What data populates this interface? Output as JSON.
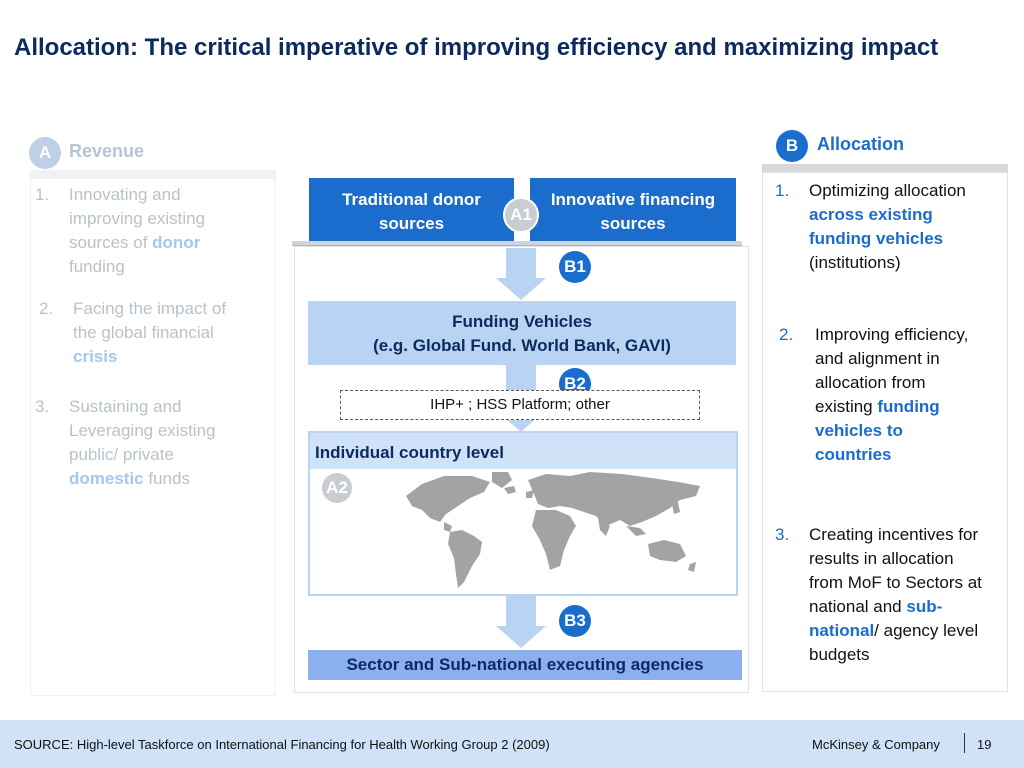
{
  "title": "Allocation: The critical imperative of improving efficiency and maximizing impact",
  "revenue": {
    "badge": "A",
    "label": "Revenue",
    "items": [
      {
        "num": "1.",
        "pre": "Innovating and improving existing sources of ",
        "hl": "donor",
        "post": " funding"
      },
      {
        "num": "2.",
        "pre": "Facing the impact of the global financial ",
        "hl": "crisis",
        "post": ""
      },
      {
        "num": "3.",
        "pre": "Sustaining and Leveraging existing public/ private ",
        "hl": "domestic",
        "post": " funds"
      }
    ]
  },
  "allocation": {
    "badge": "B",
    "label": "Allocation",
    "items": [
      {
        "num": "1.",
        "pre": "Optimizing allocation ",
        "hl": "across existing funding vehicles",
        "post": " (institutions)"
      },
      {
        "num": "2.",
        "pre": "Improving efficiency, and alignment in allocation from existing ",
        "hl": "funding vehicles to countries",
        "post": ""
      },
      {
        "num": "3.",
        "pre": "Creating incentives for results in allocation from MoF to Sectors at national and ",
        "hl": "sub-national",
        "post": "/ agency level budgets"
      }
    ]
  },
  "diagram": {
    "traditional": "Traditional donor sources",
    "innovative": "Innovative financing sources",
    "a1": "A1",
    "b1": "B1",
    "funding_line1": "Funding Vehicles",
    "funding_line2": "(e.g. Global Fund. World Bank, GAVI)",
    "b2": "B2",
    "ihp": "IHP+ ; HSS Platform; other",
    "country": "Individual country level",
    "a2": "A2",
    "b3": "B3",
    "sector": "Sector and Sub-national executing agencies"
  },
  "footer": {
    "source": "SOURCE: High-level Taskforce on International Financing for Health Working Group 2 (2009)",
    "brand": "McKinsey & Company",
    "page": "19"
  },
  "colors": {
    "accent": "#1a6dcc",
    "title": "#0b2a5e",
    "light_blue": "#b8d4f2",
    "footer": "#cfe2f7"
  }
}
